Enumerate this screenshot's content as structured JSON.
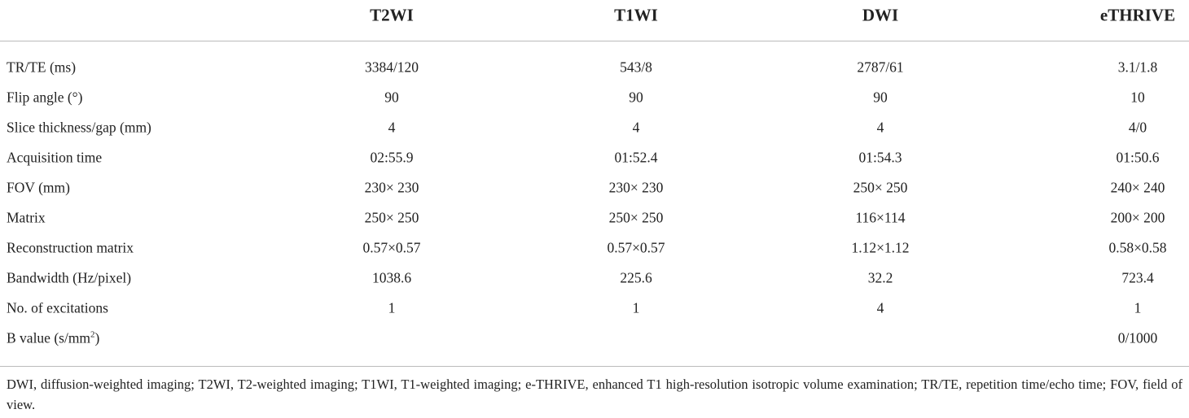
{
  "table": {
    "columns": [
      "T2WI",
      "T1WI",
      "DWI",
      "eTHRIVE"
    ],
    "rows": [
      {
        "label": "TR/TE (ms)",
        "cells": [
          "3384/120",
          "543/8",
          "2787/61",
          "3.1/1.8"
        ]
      },
      {
        "label": "Flip angle (°)",
        "cells": [
          "90",
          "90",
          "90",
          "10"
        ]
      },
      {
        "label": "Slice thickness/gap (mm)",
        "cells": [
          "4",
          "4",
          "4",
          "4/0"
        ]
      },
      {
        "label": "Acquisition time",
        "cells": [
          "02:55.9",
          "01:52.4",
          "01:54.3",
          "01:50.6"
        ]
      },
      {
        "label": "FOV (mm)",
        "cells": [
          "230× 230",
          "230× 230",
          "250× 250",
          "240× 240"
        ]
      },
      {
        "label": "Matrix",
        "cells": [
          "250× 250",
          "250× 250",
          "116×114",
          "200× 200"
        ]
      },
      {
        "label": "Reconstruction matrix",
        "cells": [
          "0.57×0.57",
          "0.57×0.57",
          "1.12×1.12",
          "0.58×0.58"
        ]
      },
      {
        "label": "Bandwidth (Hz/pixel)",
        "cells": [
          "1038.6",
          "225.6",
          "32.2",
          "723.4"
        ]
      },
      {
        "label": "No. of excitations",
        "cells": [
          "1",
          "1",
          "4",
          "1"
        ]
      },
      {
        "label": "B value (s/mm",
        "label_sup": "2",
        "label_end": ")",
        "cells": [
          null,
          null,
          null,
          "0/1000"
        ]
      }
    ],
    "footnote": "DWI, diffusion-weighted imaging; T2WI, T2-weighted imaging; T1WI, T1-weighted imaging; e-THRIVE, enhanced T1 high-resolution isotropic volume examination; TR/TE, repetition time/echo time; FOV, field of view."
  }
}
